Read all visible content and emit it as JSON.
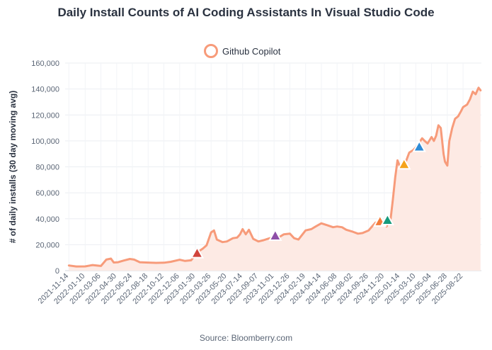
{
  "chart_data": {
    "type": "area",
    "title": "Daily Install Counts of AI Coding Assistants In Visual Studio Code",
    "ylabel": "# of daily installs (30 day moving avg)",
    "xlabel": "",
    "ylim": [
      0,
      160000
    ],
    "yticks": [
      0,
      20000,
      40000,
      60000,
      80000,
      100000,
      120000,
      140000,
      160000
    ],
    "ytick_labels": [
      "0",
      "20,000",
      "40,000",
      "60,000",
      "80,000",
      "100,000",
      "120,000",
      "140,000",
      "160,000"
    ],
    "xlim": [
      "2021-11-01",
      "2025-10-25"
    ],
    "x_tick_labels": [
      "2021-11-14",
      "2022-01-10",
      "2022-03-06",
      "2022-04-30",
      "2022-06-24",
      "2022-08-18",
      "2022-10-12",
      "2022-12-06",
      "2023-01-30",
      "2023-03-26",
      "2023-05-20",
      "2023-07-14",
      "2023-09-07",
      "2023-11-01",
      "2023-12-26",
      "2024-02-19",
      "2024-04-14",
      "2024-06-08",
      "2024-08-02",
      "2024-09-26",
      "2024-11-20",
      "2025-01-14",
      "2025-03-10",
      "2025-05-04",
      "2025-06-28",
      "2025-08-22"
    ],
    "grid": true,
    "legend": "top-center",
    "series": [
      {
        "name": "Github Copilot",
        "color": "#f79b7a",
        "fill": "#fdeae4",
        "x": [
          "2021-11-14",
          "2021-12-10",
          "2022-01-10",
          "2022-02-05",
          "2022-03-06",
          "2022-03-25",
          "2022-04-10",
          "2022-04-20",
          "2022-05-05",
          "2022-05-25",
          "2022-06-15",
          "2022-06-30",
          "2022-07-20",
          "2022-08-18",
          "2022-09-15",
          "2022-10-12",
          "2022-11-05",
          "2022-12-06",
          "2022-12-25",
          "2023-01-15",
          "2023-01-30",
          "2023-02-10",
          "2023-02-25",
          "2023-03-10",
          "2023-03-26",
          "2023-04-05",
          "2023-04-15",
          "2023-05-05",
          "2023-05-20",
          "2023-06-10",
          "2023-06-25",
          "2023-07-05",
          "2023-07-14",
          "2023-07-25",
          "2023-08-05",
          "2023-08-20",
          "2023-09-07",
          "2023-09-25",
          "2023-10-10",
          "2023-11-01",
          "2023-11-20",
          "2023-12-05",
          "2023-12-26",
          "2024-01-10",
          "2024-01-25",
          "2024-02-19",
          "2024-03-10",
          "2024-03-25",
          "2024-04-14",
          "2024-05-05",
          "2024-05-25",
          "2024-06-08",
          "2024-06-25",
          "2024-07-10",
          "2024-08-02",
          "2024-08-20",
          "2024-09-05",
          "2024-09-26",
          "2024-10-10",
          "2024-10-20",
          "2024-10-30",
          "2024-11-10",
          "2024-11-20",
          "2024-11-28",
          "2024-12-05",
          "2024-12-12",
          "2024-12-20",
          "2024-12-28",
          "2025-01-05",
          "2025-01-14",
          "2025-01-25",
          "2025-02-05",
          "2025-02-15",
          "2025-03-01",
          "2025-03-10",
          "2025-03-20",
          "2025-04-01",
          "2025-04-10",
          "2025-04-20",
          "2025-05-04",
          "2025-05-12",
          "2025-05-20",
          "2025-05-28",
          "2025-06-05",
          "2025-06-15",
          "2025-06-20",
          "2025-06-28",
          "2025-07-05",
          "2025-07-15",
          "2025-07-25",
          "2025-08-05",
          "2025-08-15",
          "2025-08-22",
          "2025-09-05",
          "2025-09-15",
          "2025-09-25",
          "2025-10-05",
          "2025-10-15",
          "2025-10-22"
        ],
        "values": [
          4000,
          3200,
          3300,
          4300,
          3600,
          8500,
          9300,
          6300,
          6500,
          7800,
          9000,
          8500,
          6500,
          6200,
          6000,
          6100,
          6800,
          8400,
          7500,
          8000,
          12300,
          14800,
          17000,
          19500,
          29500,
          31000,
          24000,
          22000,
          22500,
          25000,
          25500,
          28000,
          32000,
          28000,
          31500,
          24500,
          22500,
          23500,
          24500,
          26000,
          26000,
          28000,
          28500,
          25000,
          24000,
          31000,
          32000,
          34000,
          36500,
          35000,
          33500,
          34000,
          33500,
          31500,
          30000,
          28500,
          29000,
          31000,
          34500,
          37000,
          36000,
          38000,
          37500,
          34000,
          38000,
          40000,
          55000,
          72000,
          85000,
          80000,
          81000,
          85000,
          91000,
          93000,
          95000,
          98000,
          102000,
          100000,
          98000,
          103000,
          100000,
          104000,
          112000,
          110000,
          90000,
          84000,
          81000,
          100000,
          110000,
          117000,
          119000,
          123000,
          126000,
          128000,
          132000,
          138000,
          136000,
          141000,
          139000
        ]
      }
    ],
    "markers": [
      {
        "x": "2023-02-05",
        "y": 13500,
        "color": "#d1433b"
      },
      {
        "x": "2023-11-05",
        "y": 27000,
        "color": "#8e4fa8"
      },
      {
        "x": "2024-11-05",
        "y": 38000,
        "color": "#f47c3c"
      },
      {
        "x": "2024-12-01",
        "y": 39000,
        "color": "#169b7c"
      },
      {
        "x": "2025-01-28",
        "y": 82000,
        "color": "#f5a31a"
      },
      {
        "x": "2025-03-22",
        "y": 95500,
        "color": "#2d8bd6"
      }
    ],
    "source": "Source: Bloomberry.com"
  }
}
